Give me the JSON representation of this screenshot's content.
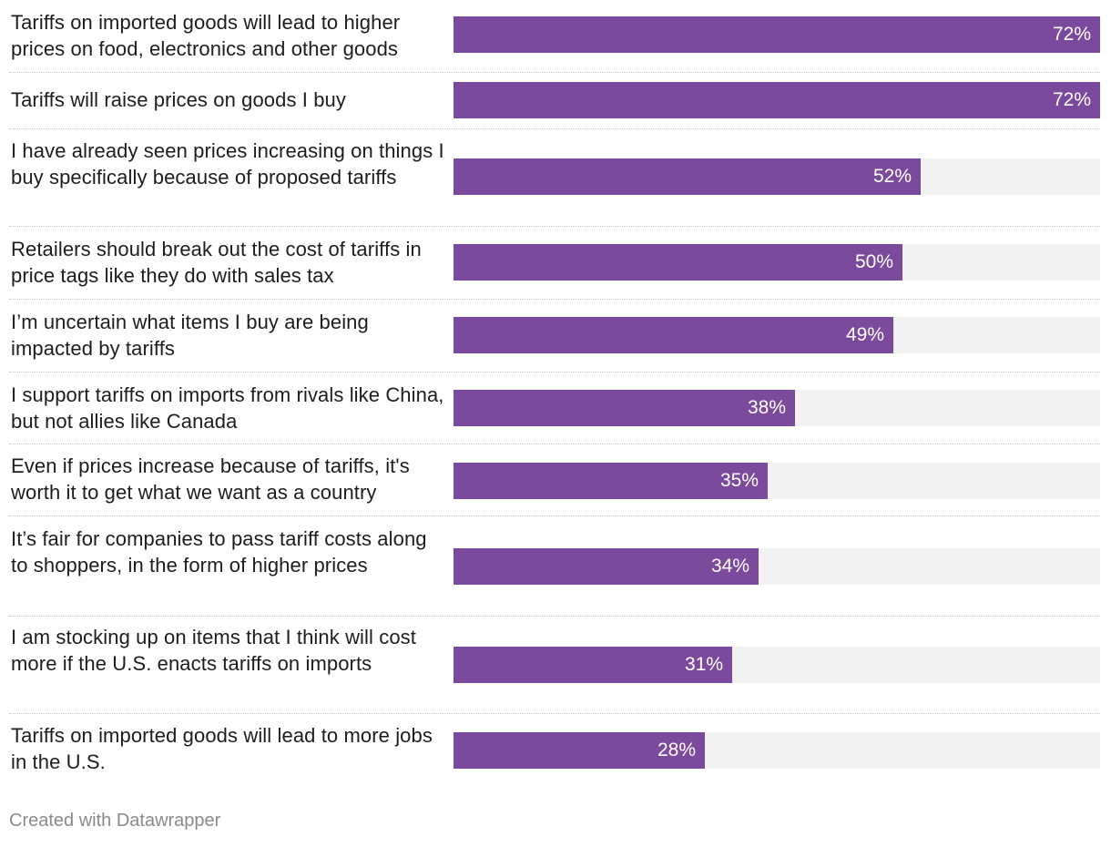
{
  "chart_data": {
    "type": "bar",
    "orientation": "horizontal",
    "xlim": [
      0,
      72
    ],
    "accent_color": "#7b4a9c",
    "track_color": "#f2f2f2",
    "categories": [
      "Tariffs on imported goods will lead to higher prices on food, electronics and other goods",
      "Tariffs will raise prices on goods I buy",
      "I have already seen prices increasing on things I buy specifically because of proposed tariffs",
      "Retailers should break out the cost of tariffs in price tags like they do with sales tax",
      "I’m uncertain what items I buy are being impacted by tariffs",
      "I support tariffs on imports from rivals like China, but not allies like Canada",
      "Even if prices increase because of tariffs, it's worth it to get what we want as a country",
      "It’s fair for companies to pass tariff costs along to shoppers, in the form of higher prices",
      "I am stocking up on items that I think will cost more if the U.S. enacts tariffs on imports",
      "Tariffs on imported goods will lead to more jobs in the U.S."
    ],
    "values": [
      72,
      72,
      52,
      50,
      49,
      38,
      35,
      34,
      31,
      28
    ],
    "value_labels": [
      "72%",
      "72%",
      "52%",
      "50%",
      "49%",
      "38%",
      "35%",
      "34%",
      "31%",
      "28%"
    ]
  },
  "footer": {
    "credit": "Created with Datawrapper"
  }
}
